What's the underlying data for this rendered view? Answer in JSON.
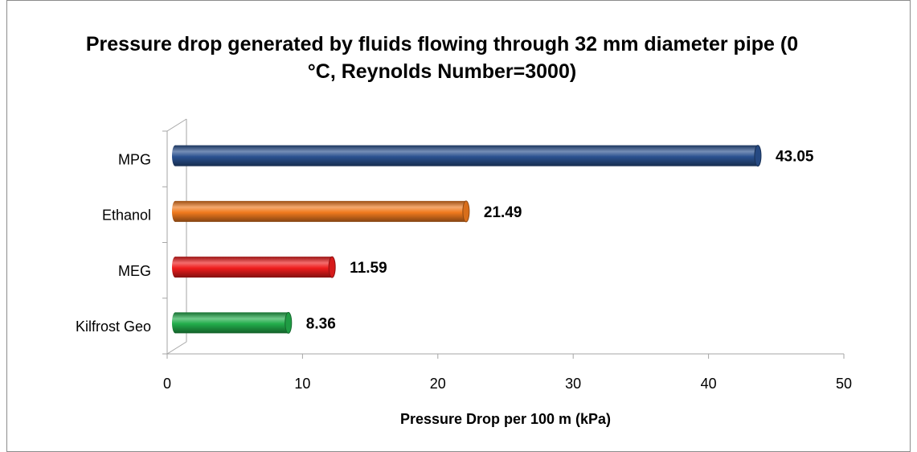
{
  "chart_data": {
    "type": "bar",
    "orientation": "horizontal",
    "title": "Pressure drop generated by fluids flowing through 32 mm diameter pipe (0 °C, Reynolds Number=3000)",
    "categories": [
      "MPG",
      "Ethanol",
      "MEG",
      "Kilfrost Geo"
    ],
    "values": [
      43.05,
      21.49,
      11.59,
      8.36
    ],
    "colors": [
      "#2a5190",
      "#f07a1e",
      "#ee1d1d",
      "#22ad4b"
    ],
    "xlabel": "Pressure Drop per 100 m (kPa)",
    "xlim": [
      0,
      50
    ],
    "xticks": [
      0,
      10,
      20,
      30,
      40,
      50
    ]
  }
}
